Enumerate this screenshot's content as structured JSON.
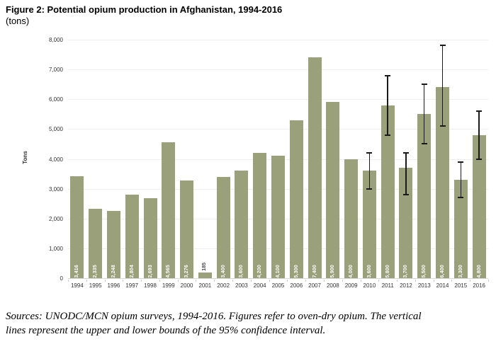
{
  "title": "Figure 2: Potential opium production in Afghanistan, 1994-2016",
  "subtitle": "(tons)",
  "footer": {
    "line1": "Sources: UNODC/MCN opium surveys, 1994-2016. Figures refer to oven-dry opium. The vertical",
    "line2": "lines represent the upper and lower bounds of the 95% confidence interval."
  },
  "colors": {
    "bar": "#99A07A",
    "grid": "#EFEFEF",
    "baseline": "#D8D8D8",
    "error_bar": "#1A1A1A",
    "bar_label": "#FFFFFF",
    "bar_label_above": "#4A4A4A",
    "axis_text": "#333333"
  },
  "chart_data": {
    "type": "bar",
    "title": "Figure 2: Potential opium production in Afghanistan, 1994-2016 (tons)",
    "xlabel": "",
    "ylabel": "Tons",
    "ylim": [
      0,
      8000
    ],
    "ytick_interval": 1000,
    "ytick_labels": [
      "0",
      "1,000",
      "2,000",
      "3,000",
      "4,000",
      "5,000",
      "6,000",
      "7,000",
      "8,000"
    ],
    "grid": true,
    "legend": "none",
    "categories": [
      "1994",
      "1995",
      "1996",
      "1997",
      "1998",
      "1999",
      "2000",
      "2001",
      "2002",
      "2003",
      "2004",
      "2005",
      "2006",
      "2007",
      "2008",
      "2009",
      "2010",
      "2011",
      "2012",
      "2013",
      "2014",
      "2015",
      "2016"
    ],
    "values": [
      3416,
      2335,
      2248,
      2804,
      2693,
      4565,
      3276,
      185,
      3400,
      3600,
      4200,
      4100,
      5300,
      7400,
      5900,
      4000,
      3600,
      5800,
      3700,
      5500,
      6400,
      3300,
      4800
    ],
    "bar_labels": [
      "3,416",
      "2,335",
      "2,248",
      "2,804",
      "2,693",
      "4,565",
      "3,276",
      "185",
      "3,400",
      "3,600",
      "4,200",
      "4,100",
      "5,300",
      "7,400",
      "5,900",
      "4,000",
      "3,600",
      "5,800",
      "3,700",
      "5,500",
      "6,400",
      "3,300",
      "4,800"
    ],
    "label_position_above": [
      "2001"
    ],
    "error_bars": [
      {
        "year": "2010",
        "lower": 3000,
        "upper": 4200
      },
      {
        "year": "2011",
        "lower": 4800,
        "upper": 6800
      },
      {
        "year": "2012",
        "lower": 2800,
        "upper": 4200
      },
      {
        "year": "2013",
        "lower": 4500,
        "upper": 6500
      },
      {
        "year": "2014",
        "lower": 5100,
        "upper": 7800
      },
      {
        "year": "2015",
        "lower": 2700,
        "upper": 3900
      },
      {
        "year": "2016",
        "lower": 4000,
        "upper": 5600
      }
    ],
    "error_bars_note": "95% confidence interval"
  }
}
